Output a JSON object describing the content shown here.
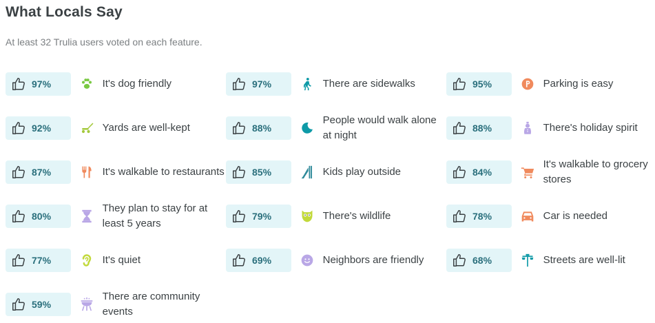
{
  "header": {
    "title": "What Locals Say",
    "subtitle": "At least 32 Trulia users voted on each feature."
  },
  "features": [
    {
      "percent": "97%",
      "label": "It's dog friendly",
      "icon": "paw-icon",
      "color": "#7ac943"
    },
    {
      "percent": "97%",
      "label": "There are sidewalks",
      "icon": "pedestrian-icon",
      "color": "#0e9aa7"
    },
    {
      "percent": "95%",
      "label": "Parking is easy",
      "icon": "parking-icon",
      "color": "#f08a5d"
    },
    {
      "percent": "92%",
      "label": "Yards are well-kept",
      "icon": "lawnmower-icon",
      "color": "#a4c93c"
    },
    {
      "percent": "88%",
      "label": "People would walk alone at night",
      "icon": "moon-icon",
      "color": "#0e9aa7"
    },
    {
      "percent": "88%",
      "label": "There's holiday spirit",
      "icon": "snowman-icon",
      "color": "#b9a7e6"
    },
    {
      "percent": "87%",
      "label": "It's walkable to restaurants",
      "icon": "utensils-icon",
      "color": "#f08a5d"
    },
    {
      "percent": "85%",
      "label": "Kids play outside",
      "icon": "slide-icon",
      "color": "#2f8a9a"
    },
    {
      "percent": "84%",
      "label": "It's walkable to grocery stores",
      "icon": "cart-icon",
      "color": "#f08a5d"
    },
    {
      "percent": "80%",
      "label": "They plan to stay for at least 5 years",
      "icon": "hourglass-icon",
      "color": "#b9a7e6"
    },
    {
      "percent": "79%",
      "label": "There's wildlife",
      "icon": "owl-icon",
      "color": "#c2d93b"
    },
    {
      "percent": "78%",
      "label": "Car is needed",
      "icon": "car-icon",
      "color": "#f08a5d"
    },
    {
      "percent": "77%",
      "label": "It's quiet",
      "icon": "ear-icon",
      "color": "#c2d93b"
    },
    {
      "percent": "69%",
      "label": "Neighbors are friendly",
      "icon": "smiley-icon",
      "color": "#b9a7e6"
    },
    {
      "percent": "68%",
      "label": "Streets are well-lit",
      "icon": "streetlight-icon",
      "color": "#0e9aa7"
    },
    {
      "percent": "59%",
      "label": "There are community events",
      "icon": "grill-icon",
      "color": "#b9a7e6"
    }
  ]
}
